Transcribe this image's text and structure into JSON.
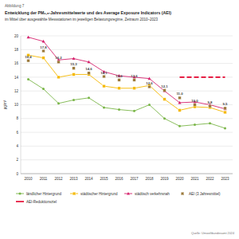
{
  "chart_data": {
    "type": "line",
    "figure_label": "Abbildung 7",
    "title": "Entwicklung der PM₂,₅-Jahresmittelwerte und des Average Exposure Indicators (AEI)",
    "subtitle": "im Mittel über ausgewählte Messstationen im jeweiligen Belastungsregime, Zeitraum 2010–2023",
    "y_label": "µg/m³",
    "source": "Quelle: Umweltbundesamt 2024",
    "categories": [
      "2010",
      "2011",
      "2012",
      "2013",
      "2014",
      "2015",
      "2016",
      "2017",
      "2018",
      "2019",
      "2020",
      "2021",
      "2022",
      "2023"
    ],
    "ylim": [
      0,
      20
    ],
    "yticks": [
      0,
      2,
      4,
      6,
      8,
      10,
      12,
      14,
      16,
      18,
      20
    ],
    "grid": true,
    "legend": "bottom",
    "series": [
      {
        "name": "ländlicher Hintergrund",
        "color": "#7ab648",
        "marker": "circle",
        "line_style": "solid",
        "values": [
          13.7,
          12.3,
          10.2,
          10.7,
          11.0,
          9.6,
          9.3,
          9.1,
          10.0,
          8.0,
          6.9,
          7.1,
          7.3,
          6.6
        ]
      },
      {
        "name": "städtischer Hintergrund",
        "color": "#f5b800",
        "marker": "square",
        "line_style": "solid",
        "values": [
          17.2,
          16.8,
          14.0,
          14.4,
          14.4,
          12.7,
          12.4,
          12.4,
          12.8,
          10.8,
          9.2,
          9.7,
          9.6,
          8.9
        ]
      },
      {
        "name": "städtisch verkehrsnah",
        "color": "#d6246e",
        "marker": "triangle",
        "line_style": "solid",
        "values": [
          19.8,
          19.2,
          16.5,
          16.7,
          16.2,
          14.8,
          14.2,
          14.0,
          13.8,
          12.0,
          10.3,
          10.4,
          10.0,
          9.4
        ]
      },
      {
        "name": "AEI (3 Jahresmittel)",
        "color": "#9c7a3c",
        "marker": "square",
        "type": "scatter",
        "data_labels": true,
        "values": [
          16.4,
          17.8,
          16.2,
          15.3,
          14.6,
          14.1,
          13.6,
          13.6,
          12.6,
          12.1,
          11.0,
          10.0,
          9.8,
          9.5
        ],
        "value_labels": [
          "16,4",
          "17,8",
          "16,2",
          "15,3",
          "14,6",
          "14,1",
          "13,6",
          "13,6",
          "12,6",
          "12,1",
          "11,0",
          "10,0",
          "9,8",
          "9,5"
        ]
      },
      {
        "name": "AEI-Reduktionsziel",
        "color": "#e4002b",
        "line_style": "dashed",
        "values": [
          null,
          null,
          null,
          null,
          null,
          null,
          null,
          null,
          null,
          null,
          14.0,
          14.0,
          14.0,
          14.0
        ]
      }
    ]
  }
}
